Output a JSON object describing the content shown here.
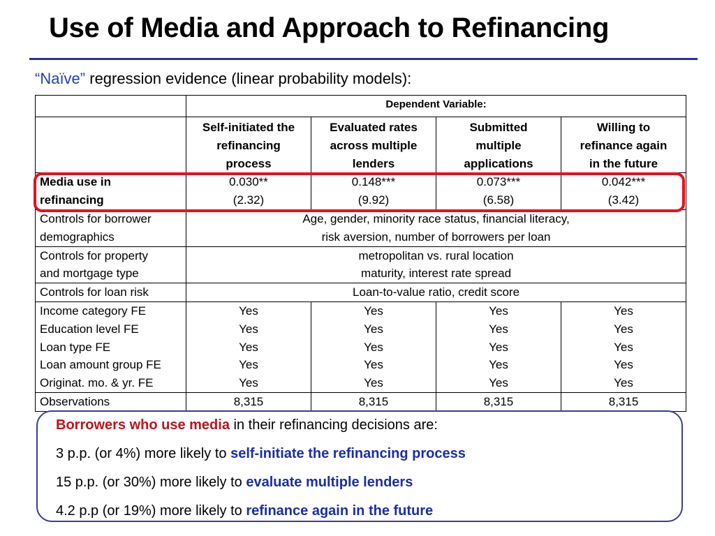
{
  "title": "Use of Media and Approach to Refinancing",
  "subtitle": {
    "quoted": "“Naïve”",
    "rest": "regression evidence (linear probability models):"
  },
  "table": {
    "dependent_header": "Dependent Variable:",
    "columns": [
      [
        "Self-initiated the",
        "refinancing",
        "process"
      ],
      [
        "Evaluated rates",
        "across multiple",
        "lenders"
      ],
      [
        "Submitted",
        "multiple",
        "applications"
      ],
      [
        "Willing to",
        "refinance again",
        "in the future"
      ]
    ],
    "media_row": {
      "label": [
        "Media use in",
        "refinancing"
      ],
      "coefs": [
        "0.030**",
        "0.148***",
        "0.073***",
        "0.042***"
      ],
      "tstats": [
        "(2.32)",
        "(9.92)",
        "(6.58)",
        "(3.42)"
      ]
    },
    "controls": [
      {
        "label": [
          "Controls for borrower",
          "demographics"
        ],
        "value": [
          "Age, gender, minority race status, financial literacy,",
          "risk aversion, number of borrowers per loan"
        ]
      },
      {
        "label": [
          "Controls for property",
          "and mortgage type"
        ],
        "value": [
          "metropolitan vs. rural location",
          "maturity, interest rate spread"
        ]
      },
      {
        "label": [
          "Controls for loan risk"
        ],
        "value": [
          "Loan-to-value ratio, credit score"
        ]
      }
    ],
    "fe_labels": [
      "Income category FE",
      "Education level FE",
      "Loan type FE",
      "Loan amount group FE",
      "Originat. mo. & yr. FE"
    ],
    "fe_values": [
      "Yes",
      "Yes",
      "Yes",
      "Yes",
      "Yes"
    ],
    "observations_label": "Observations",
    "observations": [
      "8,315",
      "8,315",
      "8,315",
      "8,315"
    ]
  },
  "summary": {
    "intro_bold": "Borrowers who use media",
    "intro_rest": " in their refinancing decisions are:",
    "points": [
      {
        "prefix": "3 p.p. (or 4%) more likely to ",
        "bold": "self-initiate the refinancing process"
      },
      {
        "prefix": "15 p.p. (or 30%) more likely to ",
        "bold": "evaluate multiple lenders"
      },
      {
        "prefix": "4.2 p.p (or 19%) more likely to ",
        "bold": "refinance again in the future"
      }
    ]
  },
  "colors": {
    "title_rule": "#2e3192",
    "highlight": "#e8101a",
    "summary_border": "#3b3b9e",
    "emphasis_red": "#c0121b",
    "emphasis_blue": "#1a2ea8"
  }
}
